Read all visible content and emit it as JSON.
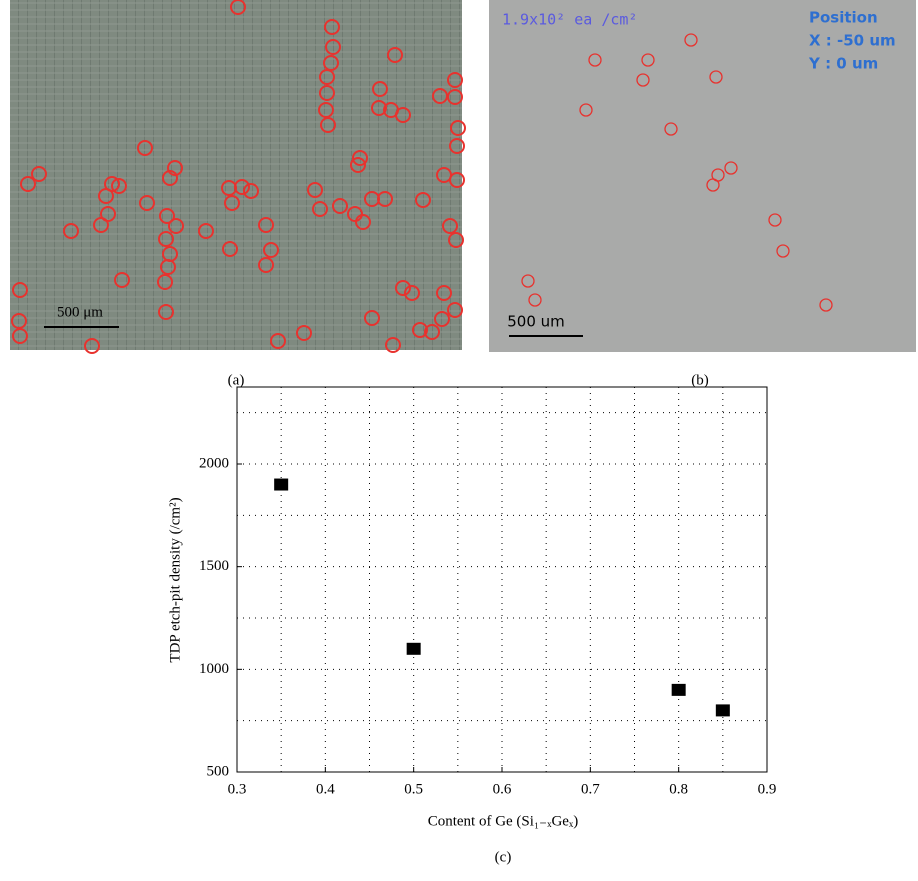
{
  "panels": {
    "a": {
      "caption": "(a)",
      "scale_bar": "500 μm"
    },
    "b": {
      "caption": "(b)",
      "scale_bar": "500 um",
      "density": "1.9x10² ea /cm²",
      "position_title": "Position",
      "position_x": "X : -50 um",
      "position_y": "Y : 0 um"
    }
  },
  "chart_data": {
    "type": "scatter",
    "caption": "(c)",
    "x_label": "Content of Ge (Si₁₋ₓGeₓ)",
    "y_label": "TDP etch-pit density (/cm²)",
    "x": [
      0.35,
      0.5,
      0.8,
      0.85
    ],
    "values": [
      1900,
      1100,
      900,
      800
    ],
    "color": "#000000",
    "xlim": [
      0.3,
      0.9
    ],
    "xticks": [
      0.3,
      0.4,
      0.5,
      0.6,
      0.7,
      0.8,
      0.9
    ],
    "x_minor_ticks": [
      0.35,
      0.45,
      0.55,
      0.65,
      0.75,
      0.85
    ],
    "ylim": [
      500,
      2375
    ],
    "yticks": [
      500,
      1000,
      1500,
      2000
    ],
    "y_minor_ticks": [
      750,
      1250,
      1750,
      2250
    ],
    "grid": true
  }
}
